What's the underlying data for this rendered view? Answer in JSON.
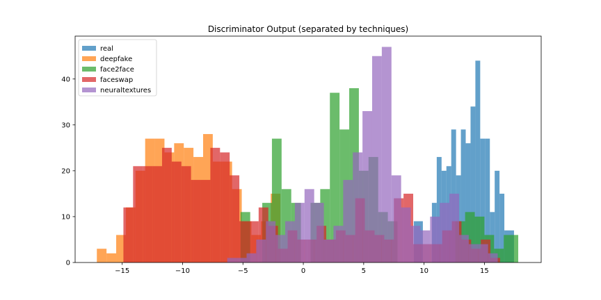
{
  "chart_data": {
    "type": "histogram",
    "title": "Discriminator Output (separated by techniques)",
    "xlabel": "",
    "ylabel": "",
    "xlim": [
      -18.9,
      19.7
    ],
    "ylim": [
      0,
      49.35
    ],
    "xticks": [
      -15,
      -10,
      -5,
      0,
      5,
      10,
      15
    ],
    "xtick_labels": [
      "−15",
      "−10",
      "−5",
      "0",
      "5",
      "10",
      "15"
    ],
    "yticks": [
      0,
      10,
      20,
      30,
      40
    ],
    "ytick_labels": [
      "0",
      "10",
      "20",
      "30",
      "40"
    ],
    "grid": false,
    "legend_position": "top-left",
    "alpha": 0.7,
    "series": [
      {
        "name": "real",
        "color": "#1f77b4",
        "bins": [
          {
            "x0": 9.15,
            "x1": 9.9,
            "count": 9
          },
          {
            "x0": 10.65,
            "x1": 11.05,
            "count": 13
          },
          {
            "x0": 11.05,
            "x1": 11.45,
            "count": 23
          },
          {
            "x0": 11.45,
            "x1": 11.85,
            "count": 20
          },
          {
            "x0": 11.85,
            "x1": 12.25,
            "count": 21
          },
          {
            "x0": 12.25,
            "x1": 12.65,
            "count": 29
          },
          {
            "x0": 12.65,
            "x1": 13.05,
            "count": 19
          },
          {
            "x0": 13.05,
            "x1": 13.45,
            "count": 29
          },
          {
            "x0": 13.45,
            "x1": 13.85,
            "count": 26
          },
          {
            "x0": 13.85,
            "x1": 14.25,
            "count": 34
          },
          {
            "x0": 14.25,
            "x1": 14.65,
            "count": 44
          },
          {
            "x0": 14.65,
            "x1": 15.05,
            "count": 27
          },
          {
            "x0": 15.05,
            "x1": 15.45,
            "count": 27
          },
          {
            "x0": 15.45,
            "x1": 15.85,
            "count": 11
          },
          {
            "x0": 15.85,
            "x1": 16.25,
            "count": 20
          },
          {
            "x0": 16.25,
            "x1": 16.65,
            "count": 15
          },
          {
            "x0": 16.65,
            "x1": 17.05,
            "count": 7
          },
          {
            "x0": 17.05,
            "x1": 17.45,
            "count": 7
          }
        ]
      },
      {
        "name": "deepfake",
        "color": "#ff7f0e",
        "bins": [
          {
            "x0": -17.1,
            "x1": -16.3,
            "count": 3
          },
          {
            "x0": -16.3,
            "x1": -15.5,
            "count": 2
          },
          {
            "x0": -15.5,
            "x1": -14.7,
            "count": 6
          },
          {
            "x0": -14.7,
            "x1": -13.9,
            "count": 12
          },
          {
            "x0": -13.9,
            "x1": -13.1,
            "count": 20
          },
          {
            "x0": -13.1,
            "x1": -12.3,
            "count": 27
          },
          {
            "x0": -12.3,
            "x1": -11.5,
            "count": 27
          },
          {
            "x0": -11.5,
            "x1": -10.7,
            "count": 24
          },
          {
            "x0": -10.7,
            "x1": -9.9,
            "count": 26
          },
          {
            "x0": -9.9,
            "x1": -9.1,
            "count": 25
          },
          {
            "x0": -9.1,
            "x1": -8.3,
            "count": 23
          },
          {
            "x0": -8.3,
            "x1": -7.5,
            "count": 28
          },
          {
            "x0": -7.5,
            "x1": -6.7,
            "count": 22
          },
          {
            "x0": -6.7,
            "x1": -5.9,
            "count": 22
          },
          {
            "x0": -5.9,
            "x1": -5.1,
            "count": 16
          },
          {
            "x0": -5.1,
            "x1": -4.3,
            "count": 9
          },
          {
            "x0": -4.3,
            "x1": -3.5,
            "count": 6
          },
          {
            "x0": -3.5,
            "x1": -2.7,
            "count": 9
          },
          {
            "x0": -2.7,
            "x1": -1.9,
            "count": 15
          }
        ]
      },
      {
        "name": "face2face",
        "color": "#2ca02c",
        "bins": [
          {
            "x0": -5.2,
            "x1": -4.4,
            "count": 11
          },
          {
            "x0": -3.4,
            "x1": -2.6,
            "count": 13
          },
          {
            "x0": -2.6,
            "x1": -1.8,
            "count": 27
          },
          {
            "x0": -1.8,
            "x1": -1.0,
            "count": 16
          },
          {
            "x0": -1.0,
            "x1": -0.2,
            "count": 13
          },
          {
            "x0": 0.6,
            "x1": 1.4,
            "count": 13
          },
          {
            "x0": 1.4,
            "x1": 2.2,
            "count": 16
          },
          {
            "x0": 2.2,
            "x1": 3.0,
            "count": 37
          },
          {
            "x0": 3.0,
            "x1": 3.8,
            "count": 29
          },
          {
            "x0": 3.8,
            "x1": 4.6,
            "count": 38
          },
          {
            "x0": 4.6,
            "x1": 5.4,
            "count": 20
          },
          {
            "x0": 5.4,
            "x1": 6.2,
            "count": 23
          },
          {
            "x0": 6.2,
            "x1": 7.0,
            "count": 11
          },
          {
            "x0": 7.0,
            "x1": 7.8,
            "count": 9
          },
          {
            "x0": 12.6,
            "x1": 13.4,
            "count": 9
          },
          {
            "x0": 13.4,
            "x1": 14.2,
            "count": 11
          },
          {
            "x0": 14.2,
            "x1": 15.0,
            "count": 10
          },
          {
            "x0": 15.0,
            "x1": 15.8,
            "count": 6
          },
          {
            "x0": 15.8,
            "x1": 16.6,
            "count": 3
          },
          {
            "x0": 16.6,
            "x1": 17.4,
            "count": 6
          },
          {
            "x0": 17.4,
            "x1": 17.8,
            "count": 6
          }
        ]
      },
      {
        "name": "faceswap",
        "color": "#d62728",
        "bins": [
          {
            "x0": -14.9,
            "x1": -14.1,
            "count": 12
          },
          {
            "x0": -14.1,
            "x1": -13.3,
            "count": 21
          },
          {
            "x0": -13.3,
            "x1": -12.5,
            "count": 21
          },
          {
            "x0": -12.5,
            "x1": -11.7,
            "count": 21
          },
          {
            "x0": -11.7,
            "x1": -10.9,
            "count": 25
          },
          {
            "x0": -10.9,
            "x1": -10.1,
            "count": 22
          },
          {
            "x0": -10.1,
            "x1": -9.3,
            "count": 21
          },
          {
            "x0": -9.3,
            "x1": -8.5,
            "count": 18
          },
          {
            "x0": -8.5,
            "x1": -7.7,
            "count": 18
          },
          {
            "x0": -7.7,
            "x1": -6.9,
            "count": 25
          },
          {
            "x0": -6.9,
            "x1": -6.1,
            "count": 24
          },
          {
            "x0": -6.1,
            "x1": -5.3,
            "count": 19
          },
          {
            "x0": -5.3,
            "x1": -4.5,
            "count": 9
          },
          {
            "x0": -4.5,
            "x1": -3.7,
            "count": 9
          },
          {
            "x0": -3.7,
            "x1": -2.9,
            "count": 12
          },
          {
            "x0": -2.9,
            "x1": -2.1,
            "count": 8
          },
          {
            "x0": -2.1,
            "x1": -1.3,
            "count": 3
          },
          {
            "x0": -1.3,
            "x1": -0.5,
            "count": 7
          },
          {
            "x0": -0.5,
            "x1": 0.3,
            "count": 5
          },
          {
            "x0": 0.3,
            "x1": 1.1,
            "count": 5
          },
          {
            "x0": 1.1,
            "x1": 1.9,
            "count": 8
          },
          {
            "x0": 1.9,
            "x1": 2.7,
            "count": 5
          },
          {
            "x0": 2.7,
            "x1": 3.5,
            "count": 7
          },
          {
            "x0": 3.5,
            "x1": 4.3,
            "count": 6
          },
          {
            "x0": 4.3,
            "x1": 5.1,
            "count": 14
          },
          {
            "x0": 5.1,
            "x1": 5.9,
            "count": 7
          },
          {
            "x0": 5.9,
            "x1": 6.7,
            "count": 6
          },
          {
            "x0": 6.7,
            "x1": 7.5,
            "count": 5
          },
          {
            "x0": 7.5,
            "x1": 8.3,
            "count": 14
          },
          {
            "x0": 8.3,
            "x1": 9.1,
            "count": 15
          },
          {
            "x0": 9.1,
            "x1": 9.9,
            "count": 4
          },
          {
            "x0": 9.9,
            "x1": 10.7,
            "count": 4
          },
          {
            "x0": 10.7,
            "x1": 11.5,
            "count": 4
          },
          {
            "x0": 11.5,
            "x1": 12.3,
            "count": 7
          },
          {
            "x0": 12.3,
            "x1": 13.1,
            "count": 9
          },
          {
            "x0": 13.1,
            "x1": 13.9,
            "count": 5
          },
          {
            "x0": 13.9,
            "x1": 14.7,
            "count": 3
          },
          {
            "x0": 14.7,
            "x1": 15.5,
            "count": 5
          },
          {
            "x0": 15.5,
            "x1": 16.3,
            "count": 1
          }
        ]
      },
      {
        "name": "neuraltextures",
        "color": "#9467bd",
        "bins": [
          {
            "x0": -6.3,
            "x1": -5.5,
            "count": 1
          },
          {
            "x0": -5.5,
            "x1": -4.7,
            "count": 1
          },
          {
            "x0": -4.7,
            "x1": -3.9,
            "count": 2
          },
          {
            "x0": -3.9,
            "x1": -3.1,
            "count": 5
          },
          {
            "x0": -3.1,
            "x1": -2.3,
            "count": 9
          },
          {
            "x0": -2.3,
            "x1": -1.5,
            "count": 6
          },
          {
            "x0": -1.5,
            "x1": -0.7,
            "count": 9
          },
          {
            "x0": -0.7,
            "x1": 0.1,
            "count": 13
          },
          {
            "x0": 0.1,
            "x1": 0.9,
            "count": 16
          },
          {
            "x0": 0.9,
            "x1": 1.7,
            "count": 13
          },
          {
            "x0": 1.7,
            "x1": 2.5,
            "count": 5
          },
          {
            "x0": 2.5,
            "x1": 3.3,
            "count": 8
          },
          {
            "x0": 3.3,
            "x1": 4.1,
            "count": 18
          },
          {
            "x0": 4.1,
            "x1": 4.9,
            "count": 24
          },
          {
            "x0": 4.9,
            "x1": 5.7,
            "count": 33
          },
          {
            "x0": 5.7,
            "x1": 6.5,
            "count": 45
          },
          {
            "x0": 6.5,
            "x1": 7.3,
            "count": 47
          },
          {
            "x0": 7.3,
            "x1": 8.1,
            "count": 19
          },
          {
            "x0": 8.1,
            "x1": 8.9,
            "count": 12
          },
          {
            "x0": 8.9,
            "x1": 9.7,
            "count": 8
          },
          {
            "x0": 9.7,
            "x1": 10.5,
            "count": 7
          },
          {
            "x0": 10.5,
            "x1": 11.3,
            "count": 10
          },
          {
            "x0": 11.3,
            "x1": 12.1,
            "count": 13
          },
          {
            "x0": 12.1,
            "x1": 12.9,
            "count": 15
          },
          {
            "x0": 12.9,
            "x1": 13.7,
            "count": 6
          },
          {
            "x0": 13.7,
            "x1": 14.5,
            "count": 4
          },
          {
            "x0": 14.5,
            "x1": 15.3,
            "count": 4
          },
          {
            "x0": 15.3,
            "x1": 16.1,
            "count": 2
          }
        ]
      }
    ]
  }
}
